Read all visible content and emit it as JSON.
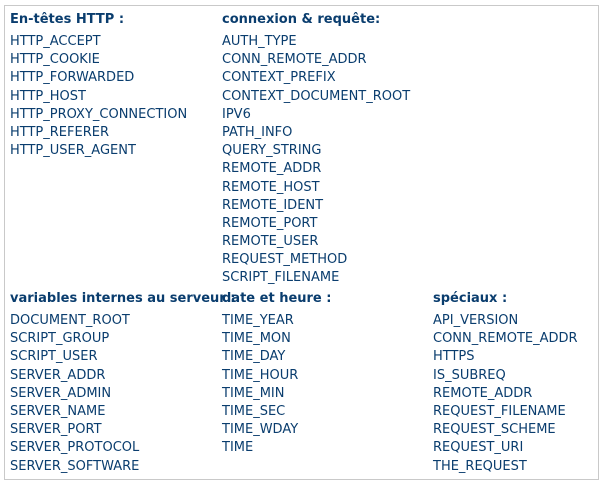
{
  "section1": {
    "col1": {
      "heading": "En-têtes HTTP :",
      "items": [
        "HTTP_ACCEPT",
        "HTTP_COOKIE",
        "HTTP_FORWARDED",
        "HTTP_HOST",
        "HTTP_PROXY_CONNECTION",
        "HTTP_REFERER",
        "HTTP_USER_AGENT"
      ]
    },
    "col2": {
      "heading": "connexion & requête:",
      "items": [
        "AUTH_TYPE",
        "CONN_REMOTE_ADDR",
        "CONTEXT_PREFIX",
        "CONTEXT_DOCUMENT_ROOT",
        "IPV6",
        "PATH_INFO",
        "QUERY_STRING",
        "REMOTE_ADDR",
        "REMOTE_HOST",
        "REMOTE_IDENT",
        "REMOTE_PORT",
        "REMOTE_USER",
        "REQUEST_METHOD",
        "SCRIPT_FILENAME"
      ]
    }
  },
  "section2": {
    "col1": {
      "heading": "variables internes au serveur :",
      "items": [
        "DOCUMENT_ROOT",
        "SCRIPT_GROUP",
        "SCRIPT_USER",
        "SERVER_ADDR",
        "SERVER_ADMIN",
        "SERVER_NAME",
        "SERVER_PORT",
        "SERVER_PROTOCOL",
        "SERVER_SOFTWARE"
      ]
    },
    "col2": {
      "heading": "date et heure :",
      "items": [
        "TIME_YEAR",
        "TIME_MON",
        "TIME_DAY",
        "TIME_HOUR",
        "TIME_MIN",
        "TIME_SEC",
        "TIME_WDAY",
        "TIME"
      ]
    },
    "col3": {
      "heading": "spéciaux :",
      "items": [
        "API_VERSION",
        "CONN_REMOTE_ADDR",
        "HTTPS",
        "IS_SUBREQ",
        "REMOTE_ADDR",
        "REQUEST_FILENAME",
        "REQUEST_SCHEME",
        "REQUEST_URI",
        "THE_REQUEST"
      ]
    }
  }
}
